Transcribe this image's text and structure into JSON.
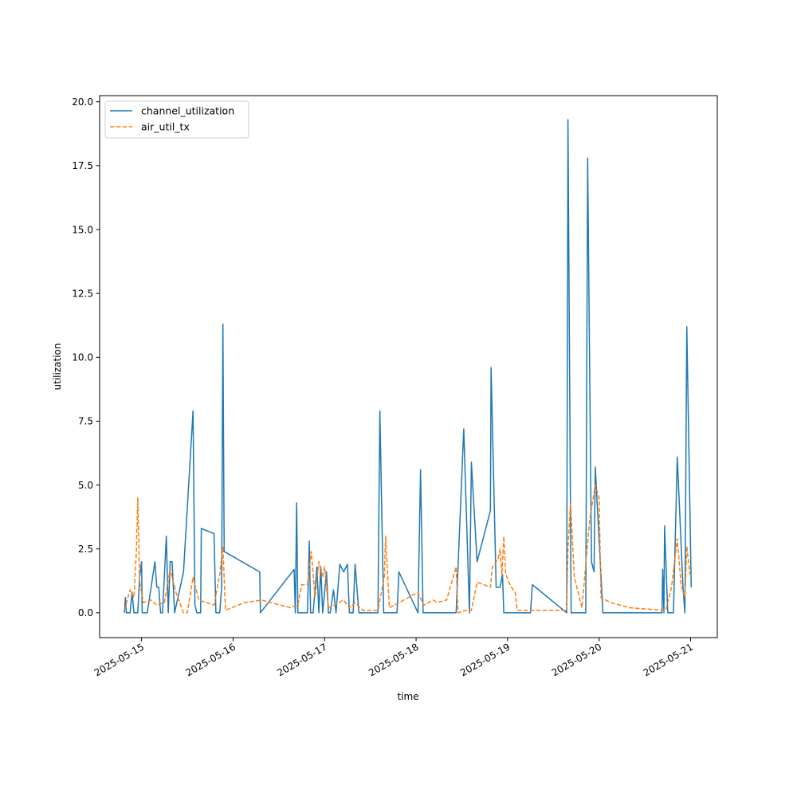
{
  "chart_data": {
    "type": "line",
    "title": "",
    "xlabel": "time",
    "ylabel": "utilization",
    "x_range": [
      "2025-05-14T13:00",
      "2025-05-21T07:00"
    ],
    "ylim": [
      -0.97,
      20.24
    ],
    "x_ticks": [
      "2025-05-15",
      "2025-05-16",
      "2025-05-17",
      "2025-05-18",
      "2025-05-19",
      "2025-05-20",
      "2025-05-21"
    ],
    "y_ticks": [
      "0.0",
      "2.5",
      "5.0",
      "7.5",
      "10.0",
      "12.5",
      "15.0",
      "17.5",
      "20.0"
    ],
    "grid": false,
    "legend_position": "upper-left",
    "series": [
      {
        "name": "channel_utilization",
        "color": "#1f77b4",
        "style": "solid",
        "points": [
          [
            "2025-05-14T19:30",
            0.0
          ],
          [
            "2025-05-14T19:45",
            0.6
          ],
          [
            "2025-05-14T20:00",
            0.0
          ],
          [
            "2025-05-14T21:00",
            0.0
          ],
          [
            "2025-05-14T21:30",
            0.8
          ],
          [
            "2025-05-14T22:00",
            0.0
          ],
          [
            "2025-05-14T23:00",
            0.0
          ],
          [
            "2025-05-14T23:30",
            1.4
          ],
          [
            "2025-05-15T00:00",
            2.0
          ],
          [
            "2025-05-15T00:10",
            0.0
          ],
          [
            "2025-05-15T01:30",
            0.0
          ],
          [
            "2025-05-15T03:30",
            2.0
          ],
          [
            "2025-05-15T04:00",
            1.0
          ],
          [
            "2025-05-15T04:30",
            1.0
          ],
          [
            "2025-05-15T05:00",
            0.0
          ],
          [
            "2025-05-15T05:30",
            0.0
          ],
          [
            "2025-05-15T06:30",
            3.0
          ],
          [
            "2025-05-15T07:00",
            0.0
          ],
          [
            "2025-05-15T07:30",
            2.0
          ],
          [
            "2025-05-15T08:00",
            2.0
          ],
          [
            "2025-05-15T08:40",
            0.0
          ],
          [
            "2025-05-15T11:00",
            1.6
          ],
          [
            "2025-05-15T13:30",
            7.9
          ],
          [
            "2025-05-15T14:00",
            0.3
          ],
          [
            "2025-05-15T14:30",
            0.0
          ],
          [
            "2025-05-15T15:30",
            0.0
          ],
          [
            "2025-05-15T15:40",
            3.3
          ],
          [
            "2025-05-15T19:00",
            3.1
          ],
          [
            "2025-05-15T19:30",
            0.0
          ],
          [
            "2025-05-15T20:30",
            0.0
          ],
          [
            "2025-05-15T21:00",
            1.0
          ],
          [
            "2025-05-15T21:20",
            11.3
          ],
          [
            "2025-05-15T21:40",
            2.4
          ],
          [
            "2025-05-16T07:00",
            1.6
          ],
          [
            "2025-05-16T07:10",
            0.0
          ],
          [
            "2025-05-16T16:00",
            1.7
          ],
          [
            "2025-05-16T16:20",
            0.0
          ],
          [
            "2025-05-16T16:40",
            4.3
          ],
          [
            "2025-05-16T17:00",
            0.0
          ],
          [
            "2025-05-16T19:30",
            0.0
          ],
          [
            "2025-05-16T20:00",
            2.8
          ],
          [
            "2025-05-16T20:20",
            0.0
          ],
          [
            "2025-05-16T21:00",
            0.0
          ],
          [
            "2025-05-16T22:00",
            1.8
          ],
          [
            "2025-05-16T22:30",
            0.0
          ],
          [
            "2025-05-16T23:00",
            1.8
          ],
          [
            "2025-05-16T23:30",
            0.0
          ],
          [
            "2025-05-17T00:30",
            1.6
          ],
          [
            "2025-05-17T01:00",
            0.0
          ],
          [
            "2025-05-17T01:30",
            0.0
          ],
          [
            "2025-05-17T02:20",
            0.9
          ],
          [
            "2025-05-17T03:00",
            0.0
          ],
          [
            "2025-05-17T04:00",
            1.9
          ],
          [
            "2025-05-17T05:00",
            1.6
          ],
          [
            "2025-05-17T06:00",
            1.9
          ],
          [
            "2025-05-17T06:30",
            0.0
          ],
          [
            "2025-05-17T07:30",
            0.0
          ],
          [
            "2025-05-17T08:00",
            1.9
          ],
          [
            "2025-05-17T09:00",
            0.0
          ],
          [
            "2025-05-17T14:00",
            0.0
          ],
          [
            "2025-05-17T14:30",
            7.9
          ],
          [
            "2025-05-17T15:30",
            0.0
          ],
          [
            "2025-05-17T16:00",
            0.0
          ],
          [
            "2025-05-17T18:00",
            0.0
          ],
          [
            "2025-05-17T19:00",
            0.0
          ],
          [
            "2025-05-17T19:30",
            1.6
          ],
          [
            "2025-05-18T00:30",
            0.0
          ],
          [
            "2025-05-18T01:10",
            5.6
          ],
          [
            "2025-05-18T01:50",
            0.0
          ],
          [
            "2025-05-18T10:30",
            0.0
          ],
          [
            "2025-05-18T12:30",
            7.2
          ],
          [
            "2025-05-18T14:00",
            0.0
          ],
          [
            "2025-05-18T14:30",
            5.9
          ],
          [
            "2025-05-18T16:00",
            2.0
          ],
          [
            "2025-05-18T19:30",
            4.0
          ],
          [
            "2025-05-18T19:40",
            9.6
          ],
          [
            "2025-05-18T21:00",
            1.0
          ],
          [
            "2025-05-18T22:00",
            1.0
          ],
          [
            "2025-05-18T22:40",
            1.5
          ],
          [
            "2025-05-18T23:00",
            0.0
          ],
          [
            "2025-05-19T03:30",
            0.0
          ],
          [
            "2025-05-19T06:00",
            0.0
          ],
          [
            "2025-05-19T06:30",
            1.1
          ],
          [
            "2025-05-19T15:30",
            0.0
          ],
          [
            "2025-05-19T15:50",
            19.3
          ],
          [
            "2025-05-19T16:40",
            0.0
          ],
          [
            "2025-05-19T20:30",
            0.0
          ],
          [
            "2025-05-19T21:00",
            17.8
          ],
          [
            "2025-05-19T22:00",
            2.0
          ],
          [
            "2025-05-19T22:40",
            1.6
          ],
          [
            "2025-05-19T23:00",
            5.7
          ],
          [
            "2025-05-20T01:00",
            0.0
          ],
          [
            "2025-05-20T16:30",
            0.0
          ],
          [
            "2025-05-20T16:40",
            1.7
          ],
          [
            "2025-05-20T17:00",
            0.0
          ],
          [
            "2025-05-20T17:10",
            3.4
          ],
          [
            "2025-05-20T18:00",
            0.0
          ],
          [
            "2025-05-20T19:30",
            0.0
          ],
          [
            "2025-05-20T20:30",
            6.1
          ],
          [
            "2025-05-20T22:00",
            1.0
          ],
          [
            "2025-05-20T22:30",
            0.0
          ],
          [
            "2025-05-20T23:00",
            11.2
          ],
          [
            "2025-05-21T00:10",
            1.0
          ]
        ]
      },
      {
        "name": "air_util_tx",
        "color": "#ff7f0e",
        "style": "dashed",
        "points": [
          [
            "2025-05-14T19:30",
            0.1
          ],
          [
            "2025-05-14T21:00",
            0.9
          ],
          [
            "2025-05-14T22:00",
            0.6
          ],
          [
            "2025-05-14T22:40",
            2.5
          ],
          [
            "2025-05-14T23:00",
            4.5
          ],
          [
            "2025-05-14T23:30",
            1.2
          ],
          [
            "2025-05-15T00:30",
            0.4
          ],
          [
            "2025-05-15T02:30",
            0.5
          ],
          [
            "2025-05-15T04:00",
            0.3
          ],
          [
            "2025-05-15T06:00",
            0.4
          ],
          [
            "2025-05-15T07:30",
            1.7
          ],
          [
            "2025-05-15T09:00",
            0.8
          ],
          [
            "2025-05-15T11:00",
            0.0
          ],
          [
            "2025-05-15T12:00",
            0.0
          ],
          [
            "2025-05-15T13:30",
            1.4
          ],
          [
            "2025-05-15T15:00",
            0.5
          ],
          [
            "2025-05-15T19:00",
            0.3
          ],
          [
            "2025-05-15T20:30",
            1.5
          ],
          [
            "2025-05-15T21:20",
            2.6
          ],
          [
            "2025-05-15T22:00",
            0.1
          ],
          [
            "2025-05-16T03:00",
            0.4
          ],
          [
            "2025-05-16T07:30",
            0.5
          ],
          [
            "2025-05-16T15:00",
            0.2
          ],
          [
            "2025-05-16T17:00",
            0.3
          ],
          [
            "2025-05-16T18:00",
            1.1
          ],
          [
            "2025-05-16T19:30",
            1.1
          ],
          [
            "2025-05-16T20:30",
            2.4
          ],
          [
            "2025-05-16T21:30",
            0.6
          ],
          [
            "2025-05-16T22:30",
            2.0
          ],
          [
            "2025-05-16T23:30",
            1.4
          ],
          [
            "2025-05-17T00:00",
            1.8
          ],
          [
            "2025-05-17T01:00",
            0.2
          ],
          [
            "2025-05-17T02:30",
            0.3
          ],
          [
            "2025-05-17T05:00",
            0.5
          ],
          [
            "2025-05-17T06:30",
            0.2
          ],
          [
            "2025-05-17T08:00",
            0.4
          ],
          [
            "2025-05-17T10:00",
            0.1
          ],
          [
            "2025-05-17T14:00",
            0.1
          ],
          [
            "2025-05-17T15:40",
            1.4
          ],
          [
            "2025-05-17T16:00",
            3.0
          ],
          [
            "2025-05-17T17:00",
            0.2
          ],
          [
            "2025-05-18T00:30",
            0.8
          ],
          [
            "2025-05-18T02:00",
            0.3
          ],
          [
            "2025-05-18T04:30",
            0.5
          ],
          [
            "2025-05-18T05:30",
            0.4
          ],
          [
            "2025-05-18T08:00",
            0.5
          ],
          [
            "2025-05-18T10:30",
            1.8
          ],
          [
            "2025-05-18T11:00",
            0.0
          ],
          [
            "2025-05-18T13:00",
            0.1
          ],
          [
            "2025-05-18T14:30",
            0.1
          ],
          [
            "2025-05-18T16:00",
            1.2
          ],
          [
            "2025-05-18T19:30",
            1.0
          ],
          [
            "2025-05-18T20:00",
            1.8
          ],
          [
            "2025-05-18T21:30",
            2.1
          ],
          [
            "2025-05-18T22:00",
            2.5
          ],
          [
            "2025-05-18T22:30",
            1.5
          ],
          [
            "2025-05-18T23:00",
            3.0
          ],
          [
            "2025-05-18T23:30",
            1.5
          ],
          [
            "2025-05-19T01:00",
            1.0
          ],
          [
            "2025-05-19T02:00",
            0.8
          ],
          [
            "2025-05-19T02:30",
            0.1
          ],
          [
            "2025-05-19T08:00",
            0.1
          ],
          [
            "2025-05-19T15:30",
            0.1
          ],
          [
            "2025-05-19T15:50",
            2.5
          ],
          [
            "2025-05-19T16:30",
            4.3
          ],
          [
            "2025-05-19T17:30",
            1.4
          ],
          [
            "2025-05-19T19:30",
            0.2
          ],
          [
            "2025-05-19T21:30",
            3.6
          ],
          [
            "2025-05-19T23:00",
            5.0
          ],
          [
            "2025-05-20T00:00",
            4.5
          ],
          [
            "2025-05-20T00:30",
            0.6
          ],
          [
            "2025-05-20T03:00",
            0.4
          ],
          [
            "2025-05-20T08:00",
            0.2
          ],
          [
            "2025-05-20T16:30",
            0.1
          ],
          [
            "2025-05-20T17:30",
            0.1
          ],
          [
            "2025-05-20T19:00",
            1.0
          ],
          [
            "2025-05-20T20:30",
            2.9
          ],
          [
            "2025-05-20T21:30",
            1.1
          ],
          [
            "2025-05-20T22:30",
            0.6
          ],
          [
            "2025-05-20T23:00",
            2.6
          ],
          [
            "2025-05-20T23:50",
            1.5
          ],
          [
            "2025-05-21T00:10",
            1.5
          ]
        ]
      }
    ]
  }
}
